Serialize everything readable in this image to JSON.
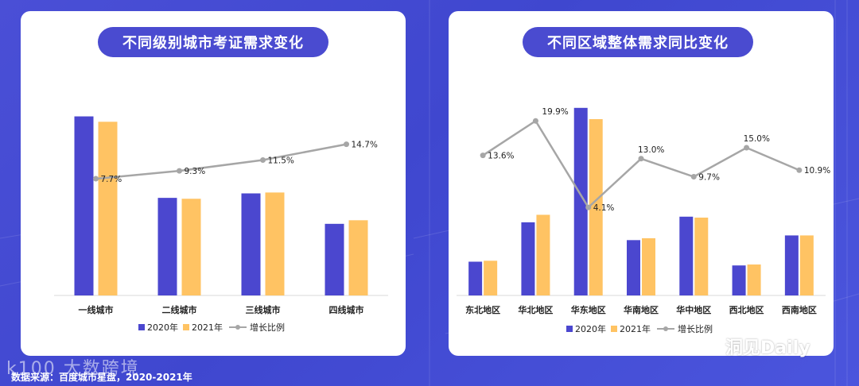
{
  "source_text": "数据来源：百度城市星盘，2020-2021年",
  "brand_left": "k100 大数跨境",
  "brand_right": "洞见Daily",
  "colors": {
    "c2020": "#4b47cf",
    "c2021": "#ffc363",
    "growth": "#a6a6a6"
  },
  "chart_data": [
    {
      "type": "bar",
      "title": "不同级别城市考证需求变化",
      "categories": [
        "一线城市",
        "二线城市",
        "三线城市",
        "四线城市"
      ],
      "series": [
        {
          "name": "2020年",
          "values": [
            100,
            54.5,
            57,
            40
          ]
        },
        {
          "name": "2021年",
          "values": [
            97,
            54,
            57.5,
            42
          ]
        },
        {
          "name": "增长比例",
          "type": "line",
          "values": [
            7.7,
            9.3,
            11.5,
            14.7
          ],
          "labels": [
            "7.7%",
            "9.3%",
            "11.5%",
            "14.7%"
          ]
        }
      ],
      "ylim": [
        0,
        110
      ],
      "growth_ylim": [
        -16,
        24
      ],
      "legend": [
        "2020年",
        "2021年",
        "增长比例"
      ],
      "legend_position": "bottom",
      "grid": false
    },
    {
      "type": "bar",
      "title": "不同区域整体需求同比变化",
      "categories": [
        "东北地区",
        "华北地区",
        "华东地区",
        "华南地区",
        "华中地区",
        "西北地区",
        "西南地区"
      ],
      "series": [
        {
          "name": "2020年",
          "values": [
            18,
            39,
            100,
            29.5,
            42,
            16,
            32
          ]
        },
        {
          "name": "2021年",
          "values": [
            18.5,
            43,
            94,
            30.5,
            41.5,
            16.5,
            32
          ]
        },
        {
          "name": "增长比例",
          "type": "line",
          "values": [
            13.6,
            19.9,
            4.1,
            13.0,
            9.7,
            15.0,
            10.9
          ],
          "labels": [
            "13.6%",
            "19.9%",
            "4.1%",
            "13.0%",
            "9.7%",
            "15.0%",
            "10.9%"
          ]
        }
      ],
      "ylim": [
        0,
        105
      ],
      "growth_ylim": [
        -12,
        24
      ],
      "legend": [
        "2020年",
        "2021年",
        "增长比例"
      ],
      "legend_position": "bottom",
      "grid": false
    }
  ]
}
